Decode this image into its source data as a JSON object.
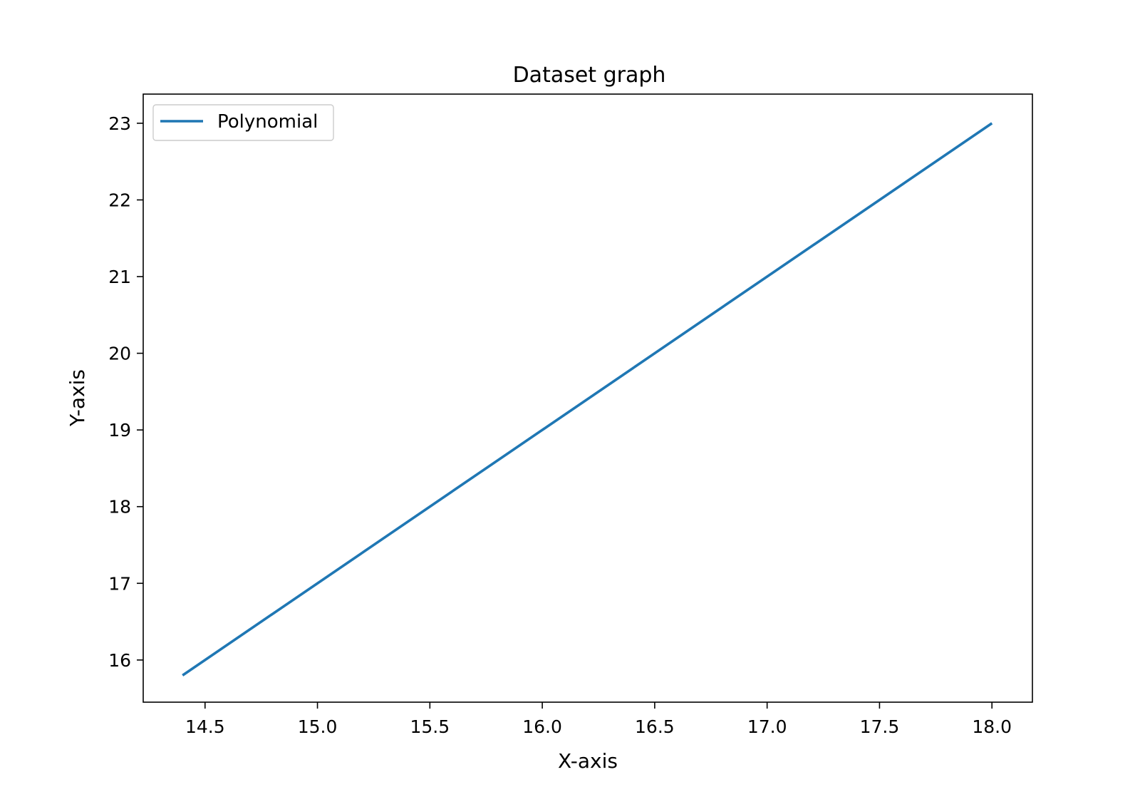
{
  "chart_data": {
    "type": "line",
    "title": "Dataset graph",
    "xlabel": "X-axis",
    "ylabel": "Y-axis",
    "xlim": [
      14.225,
      18.18
    ],
    "ylim": [
      15.45,
      23.38
    ],
    "xticks": [
      14.5,
      15.0,
      15.5,
      16.0,
      16.5,
      17.0,
      17.5,
      18.0
    ],
    "xtick_labels": [
      "14.5",
      "15.0",
      "15.5",
      "16.0",
      "16.5",
      "17.0",
      "17.5",
      "18.0"
    ],
    "yticks": [
      16,
      17,
      18,
      19,
      20,
      21,
      22,
      23
    ],
    "ytick_labels": [
      "16",
      "17",
      "18",
      "19",
      "20",
      "21",
      "22",
      "23"
    ],
    "grid": false,
    "legend_position": "upper-left",
    "series": [
      {
        "name": "Polynomial",
        "color": "#1f77b4",
        "x": [
          14.4,
          18.0
        ],
        "y": [
          15.8,
          23.0
        ]
      }
    ]
  }
}
